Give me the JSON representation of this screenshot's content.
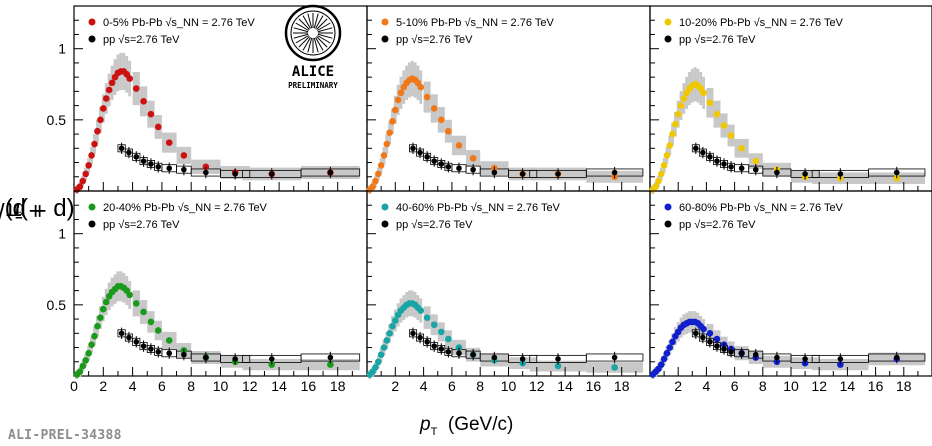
{
  "figure": {
    "ylabel_main": "(p + p̄)/(π",
    "ylabel_sup": "+",
    "ylabel_mid": " + π",
    "ylabel_sup2": "-",
    "ylabel_end": ")",
    "xlabel_var": "p",
    "xlabel_sub": "T",
    "xlabel_unit": "(GeV/c)",
    "preliminary_id": "ALI-PREL-34388",
    "logo_text": "ALICE",
    "logo_sub": "PRELIMINARY"
  },
  "colors": {
    "pp": "#000000",
    "band": "#c8c8c8",
    "panels": [
      "#cc1111",
      "#f07818",
      "#f0c800",
      "#1a9a1a",
      "#19a5a5",
      "#1020cc"
    ]
  },
  "chart_data": [
    {
      "type": "scatter",
      "legend": [
        "0-5% Pb-Pb",
        "pp"
      ],
      "collision_label": "√s_NN = 2.76 TeV",
      "pp_label": "√s=2.76 TeV",
      "ylim": [
        0,
        1.3
      ],
      "xlim": [
        0,
        20
      ],
      "pbpb": {
        "x": [
          0.2,
          0.4,
          0.6,
          0.8,
          1.0,
          1.2,
          1.4,
          1.6,
          1.8,
          2.0,
          2.2,
          2.4,
          2.6,
          2.8,
          3.0,
          3.2,
          3.4,
          3.6,
          3.8,
          4.25,
          4.75,
          5.25,
          5.75,
          6.5,
          7.5,
          9.0,
          11.0,
          13.5,
          17.5
        ],
        "y": [
          0.01,
          0.03,
          0.07,
          0.12,
          0.18,
          0.25,
          0.33,
          0.42,
          0.5,
          0.58,
          0.65,
          0.71,
          0.76,
          0.8,
          0.83,
          0.84,
          0.84,
          0.82,
          0.79,
          0.72,
          0.63,
          0.54,
          0.45,
          0.34,
          0.25,
          0.17,
          0.13,
          0.12,
          0.13
        ]
      },
      "pp": {
        "x": [
          3.25,
          3.75,
          4.25,
          4.75,
          5.25,
          5.75,
          6.5,
          7.5,
          9.0,
          11.0,
          13.5,
          17.5
        ],
        "y": [
          0.3,
          0.27,
          0.24,
          0.21,
          0.19,
          0.17,
          0.16,
          0.15,
          0.13,
          0.12,
          0.12,
          0.13
        ]
      }
    },
    {
      "type": "scatter",
      "legend": [
        "5-10% Pb-Pb",
        "pp"
      ],
      "collision_label": "√s_NN = 2.76 TeV",
      "pp_label": "√s=2.76 TeV",
      "ylim": [
        0,
        1.3
      ],
      "xlim": [
        0,
        20
      ],
      "pbpb": {
        "x": [
          0.2,
          0.4,
          0.6,
          0.8,
          1.0,
          1.2,
          1.4,
          1.6,
          1.8,
          2.0,
          2.2,
          2.4,
          2.6,
          2.8,
          3.0,
          3.2,
          3.4,
          3.6,
          3.8,
          4.25,
          4.75,
          5.25,
          5.75,
          6.5,
          7.5,
          9.0,
          11.0,
          13.5,
          17.5
        ],
        "y": [
          0.01,
          0.03,
          0.07,
          0.12,
          0.18,
          0.25,
          0.33,
          0.41,
          0.49,
          0.57,
          0.64,
          0.69,
          0.73,
          0.76,
          0.78,
          0.79,
          0.78,
          0.76,
          0.73,
          0.66,
          0.58,
          0.5,
          0.42,
          0.32,
          0.23,
          0.16,
          0.12,
          0.12,
          0.1
        ]
      },
      "pp": {
        "x": [
          3.25,
          3.75,
          4.25,
          4.75,
          5.25,
          5.75,
          6.5,
          7.5,
          9.0,
          11.0,
          13.5,
          17.5
        ],
        "y": [
          0.3,
          0.27,
          0.24,
          0.21,
          0.19,
          0.17,
          0.16,
          0.15,
          0.13,
          0.12,
          0.12,
          0.13
        ]
      }
    },
    {
      "type": "scatter",
      "legend": [
        "10-20% Pb-Pb",
        "pp"
      ],
      "collision_label": "√s_NN = 2.76 TeV",
      "pp_label": "√s=2.76 TeV",
      "ylim": [
        0,
        1.3
      ],
      "xlim": [
        0,
        20
      ],
      "pbpb": {
        "x": [
          0.2,
          0.4,
          0.6,
          0.8,
          1.0,
          1.2,
          1.4,
          1.6,
          1.8,
          2.0,
          2.2,
          2.4,
          2.6,
          2.8,
          3.0,
          3.2,
          3.4,
          3.6,
          3.8,
          4.25,
          4.75,
          5.25,
          5.75,
          6.5,
          7.5,
          9.0,
          11.0,
          13.5,
          17.5
        ],
        "y": [
          0.01,
          0.03,
          0.07,
          0.12,
          0.18,
          0.25,
          0.32,
          0.4,
          0.47,
          0.54,
          0.6,
          0.65,
          0.69,
          0.72,
          0.74,
          0.75,
          0.74,
          0.72,
          0.69,
          0.62,
          0.54,
          0.46,
          0.39,
          0.3,
          0.21,
          0.15,
          0.1,
          0.09,
          0.09
        ]
      },
      "pp": {
        "x": [
          3.25,
          3.75,
          4.25,
          4.75,
          5.25,
          5.75,
          6.5,
          7.5,
          9.0,
          11.0,
          13.5,
          17.5
        ],
        "y": [
          0.3,
          0.27,
          0.24,
          0.21,
          0.19,
          0.17,
          0.16,
          0.15,
          0.13,
          0.12,
          0.12,
          0.13
        ]
      }
    },
    {
      "type": "scatter",
      "legend": [
        "20-40% Pb-Pb",
        "pp"
      ],
      "collision_label": "√s_NN = 2.76 TeV",
      "pp_label": "√s=2.76 TeV",
      "ylim": [
        0,
        1.3
      ],
      "xlim": [
        0,
        20
      ],
      "pbpb": {
        "x": [
          0.2,
          0.4,
          0.6,
          0.8,
          1.0,
          1.2,
          1.4,
          1.6,
          1.8,
          2.0,
          2.2,
          2.4,
          2.6,
          2.8,
          3.0,
          3.2,
          3.4,
          3.6,
          3.8,
          4.25,
          4.75,
          5.25,
          5.75,
          6.5,
          7.5,
          9.0,
          11.0,
          13.5,
          17.5
        ],
        "y": [
          0.01,
          0.03,
          0.07,
          0.11,
          0.16,
          0.22,
          0.28,
          0.35,
          0.41,
          0.47,
          0.52,
          0.56,
          0.59,
          0.61,
          0.63,
          0.63,
          0.62,
          0.6,
          0.57,
          0.51,
          0.45,
          0.38,
          0.32,
          0.25,
          0.18,
          0.13,
          0.1,
          0.08,
          0.08
        ]
      },
      "pp": {
        "x": [
          3.25,
          3.75,
          4.25,
          4.75,
          5.25,
          5.75,
          6.5,
          7.5,
          9.0,
          11.0,
          13.5,
          17.5
        ],
        "y": [
          0.3,
          0.27,
          0.24,
          0.21,
          0.19,
          0.17,
          0.16,
          0.15,
          0.13,
          0.12,
          0.12,
          0.13
        ]
      }
    },
    {
      "type": "scatter",
      "legend": [
        "40-60% Pb-Pb",
        "pp"
      ],
      "collision_label": "√s_NN = 2.76 TeV",
      "pp_label": "√s=2.76 TeV",
      "ylim": [
        0,
        1.3
      ],
      "xlim": [
        0,
        20
      ],
      "pbpb": {
        "x": [
          0.2,
          0.4,
          0.6,
          0.8,
          1.0,
          1.2,
          1.4,
          1.6,
          1.8,
          2.0,
          2.2,
          2.4,
          2.6,
          2.8,
          3.0,
          3.2,
          3.4,
          3.6,
          3.8,
          4.25,
          4.75,
          5.25,
          5.75,
          6.5,
          7.5,
          9.0,
          11.0,
          13.5,
          17.5
        ],
        "y": [
          0.01,
          0.03,
          0.06,
          0.1,
          0.15,
          0.2,
          0.25,
          0.3,
          0.35,
          0.39,
          0.43,
          0.46,
          0.48,
          0.5,
          0.51,
          0.51,
          0.5,
          0.48,
          0.46,
          0.41,
          0.36,
          0.31,
          0.26,
          0.2,
          0.15,
          0.11,
          0.09,
          0.07,
          0.06
        ]
      },
      "pp": {
        "x": [
          3.25,
          3.75,
          4.25,
          4.75,
          5.25,
          5.75,
          6.5,
          7.5,
          9.0,
          11.0,
          13.5,
          17.5
        ],
        "y": [
          0.3,
          0.27,
          0.24,
          0.21,
          0.19,
          0.17,
          0.16,
          0.15,
          0.13,
          0.12,
          0.12,
          0.13
        ]
      }
    },
    {
      "type": "scatter",
      "legend": [
        "60-80% Pb-Pb",
        "pp"
      ],
      "collision_label": "√s_NN = 2.76 TeV",
      "pp_label": "√s=2.76 TeV",
      "ylim": [
        0,
        1.3
      ],
      "xlim": [
        0,
        20
      ],
      "pbpb": {
        "x": [
          0.2,
          0.4,
          0.6,
          0.8,
          1.0,
          1.2,
          1.4,
          1.6,
          1.8,
          2.0,
          2.2,
          2.4,
          2.6,
          2.8,
          3.0,
          3.2,
          3.4,
          3.6,
          3.8,
          4.25,
          4.75,
          5.25,
          5.75,
          6.5,
          7.5,
          9.0,
          11.0,
          13.5,
          17.5
        ],
        "y": [
          0.01,
          0.03,
          0.05,
          0.08,
          0.12,
          0.16,
          0.2,
          0.24,
          0.28,
          0.31,
          0.34,
          0.36,
          0.37,
          0.38,
          0.38,
          0.38,
          0.37,
          0.35,
          0.33,
          0.3,
          0.26,
          0.22,
          0.19,
          0.16,
          0.13,
          0.1,
          0.09,
          0.08,
          0.12
        ]
      },
      "pp": {
        "x": [
          3.25,
          3.75,
          4.25,
          4.75,
          5.25,
          5.75,
          6.5,
          7.5,
          9.0,
          11.0,
          13.5,
          17.5
        ],
        "y": [
          0.3,
          0.27,
          0.24,
          0.21,
          0.19,
          0.17,
          0.16,
          0.15,
          0.13,
          0.12,
          0.12,
          0.13
        ]
      }
    }
  ],
  "axes": {
    "x_ticks": [
      2,
      4,
      6,
      8,
      10,
      12,
      14,
      16,
      18
    ],
    "x_tick_first_panel_extra": [
      0
    ],
    "y_ticks": [
      0.5,
      1
    ]
  }
}
